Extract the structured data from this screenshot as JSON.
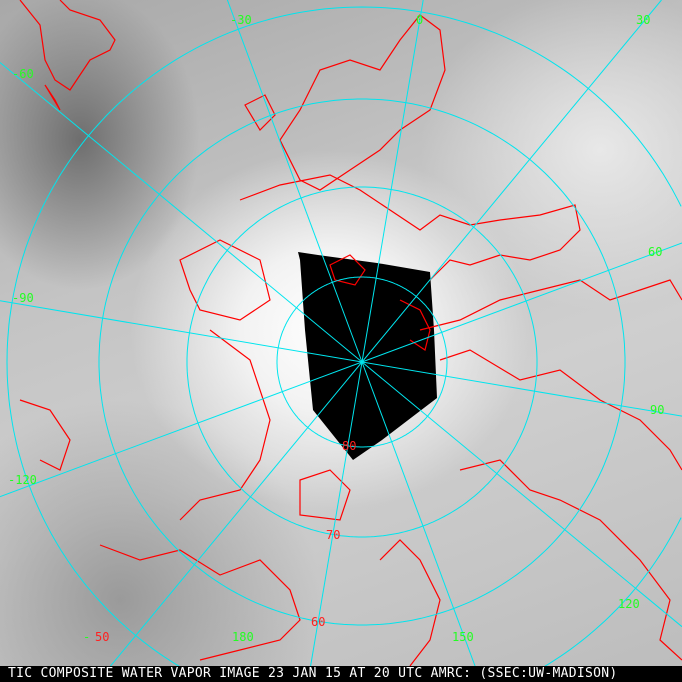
{
  "caption": "TIC COMPOSITE WATER VAPOR IMAGE 23 JAN 15 AT 20 UTC AMRC: (SSEC:UW-MADISON)",
  "longitude_labels": {
    "m30": "-30",
    "zero": "0",
    "p30": "30",
    "m60": "-60",
    "p60": "60",
    "m90": "-90",
    "p90": "90",
    "m120": "-120",
    "p120": "120",
    "p150": "150",
    "p180": "180",
    "m50dash": "-"
  },
  "latitude_labels": {
    "lat80": "80",
    "lat70": "70",
    "lat60": "60",
    "lat50": "50"
  },
  "colors": {
    "graticule": "#00e5ee",
    "coastline": "#ff0000",
    "longitude_label": "#22ff22",
    "latitude_label": "#ff2020",
    "no_data": "#000000"
  },
  "meridian_spacing_deg": 30,
  "latitude_circles_deg": [
    80,
    70,
    60,
    50
  ]
}
